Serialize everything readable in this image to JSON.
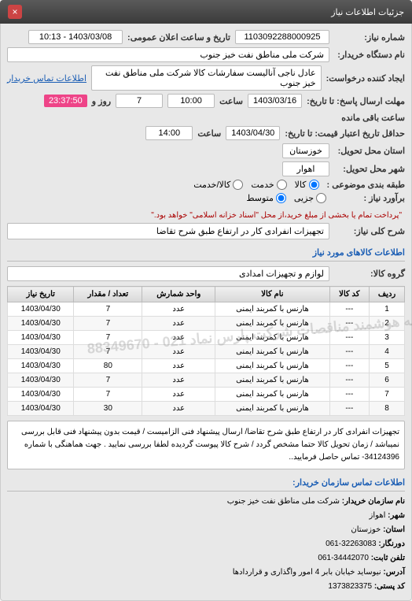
{
  "header": {
    "title": "جزئیات اطلاعات نیاز"
  },
  "info": {
    "req_no_label": "شماره نیاز:",
    "req_no": "1103092288000925",
    "announce_label": "تاریخ و ساعت اعلان عمومی:",
    "announce": "1403/03/08 - 10:13",
    "buyer_label": "نام دستگاه خریدار:",
    "buyer": "شرکت ملی مناطق نفت خیز جنوب",
    "requester_label": "ایجاد کننده درخواست:",
    "requester": "عادل ناجی آنالیست سفارشات کالا   شرکت ملی مناطق نفت خیز جنوب",
    "contact_link": "اطلاعات تماس خریدار",
    "reply_until_label": "مهلت ارسال پاسخ: تا تاریخ:",
    "reply_date": "1403/03/16",
    "reply_time_label": "ساعت",
    "reply_time": "10:00",
    "days_label": "روز و",
    "days": "7",
    "remain_label": "ساعت باقی مانده",
    "remain": "23:37:50",
    "quote_until_label": "حداقل تاریخ اعتبار قیمت: تا تاریخ:",
    "quote_date": "1403/04/30",
    "quote_time_label": "ساعت",
    "quote_time": "14:00",
    "province_label": "استان محل تحویل:",
    "province": "خوزستان",
    "city_label": "شهر محل تحویل:",
    "city": "اهوار",
    "class_label": "طبقه بندی موضوعی :",
    "class_opts": {
      "goods": "کالا",
      "service": "خدمت",
      "both": "کالا/خدمت"
    },
    "need_label": "برآورد نیاز :",
    "need_opts": {
      "small": "جزیی",
      "medium": "متوسط"
    },
    "need_note": "\"پرداخت تمام یا بخشی از مبلغ خرید،از محل \"اسناد خزانه اسلامی\" خواهد بود.\"",
    "main_desc_label": "شرح کلی نیاز:",
    "main_desc": "تجهیزات انفرادی کار در ارتفاع طبق شرح تقاضا"
  },
  "goods_section": "اطلاعات کالاهای مورد نیاز",
  "goods_group_label": "گروه کالا:",
  "goods_group": "لوازم و تجهیزات امدادی",
  "table": {
    "headers": [
      "ردیف",
      "کد کالا",
      "نام کالا",
      "واحد شمارش",
      "تعداد / مقدار",
      "تاریخ نیاز"
    ],
    "rows": [
      [
        "1",
        "---",
        "هارنس با کمربند ایمنی",
        "عدد",
        "7",
        "1403/04/30"
      ],
      [
        "2",
        "---",
        "هارنس با کمربند ایمنی",
        "عدد",
        "7",
        "1403/04/30"
      ],
      [
        "3",
        "---",
        "هارنس با کمربند ایمنی",
        "عدد",
        "7",
        "1403/04/30"
      ],
      [
        "4",
        "---",
        "هارنس با کمربند ایمنی",
        "عدد",
        "7",
        "1403/04/30"
      ],
      [
        "5",
        "---",
        "هارنس با کمربند ایمنی",
        "عدد",
        "80",
        "1403/04/30"
      ],
      [
        "6",
        "---",
        "هارنس با کمربند ایمنی",
        "عدد",
        "7",
        "1403/04/30"
      ],
      [
        "7",
        "---",
        "هارنس با کمربند ایمنی",
        "عدد",
        "7",
        "1403/04/30"
      ],
      [
        "8",
        "---",
        "هارنس با کمربند ایمنی",
        "عدد",
        "30",
        "1403/04/30"
      ]
    ]
  },
  "watermark": "سامانه هوشمند مناقصات شرکت پارس نماد\n021 - 88349670",
  "footer_note": "تجهیزات انفرادی کار در ارتفاع طبق شرح تقاضا/ ارسال پیشنهاد فنی الزامیست / قیمت بدون پیشنهاد فنی قابل بررسی نمیباشد / زمان تحویل کالا حتما مشخص گردد / شرح کالا پیوست گردیده لطفا بررسی نمایید . جهت هماهنگی با شماره 34124396- تماس حاصل فرمایید..",
  "contact": {
    "section": "اطلاعات تماس سازمان خریدار:",
    "org_label": "نام سازمان خریدار:",
    "org": "شرکت ملی مناطق نفت خیز جنوب",
    "city_label": "شهر:",
    "city": "اهواز",
    "province_label": "استان:",
    "province": "خوزستان",
    "fax_label": "دورنگار:",
    "fax": "32263083-061",
    "phone_label": "تلفن ثابت:",
    "phone": "34442070-061",
    "address_label": "آدرس:",
    "address": "نیوساید خیابان بابر 4 امور واگذاری و قراردادها",
    "postal_label": "کد پستی:",
    "postal": "1373823375"
  }
}
